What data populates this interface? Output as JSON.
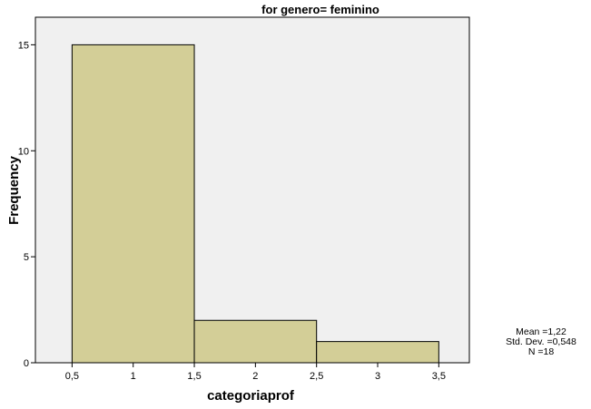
{
  "chart_data": {
    "type": "bar",
    "title": "for genero= feminino",
    "xlabel": "categoriaprof",
    "ylabel": "Frequency",
    "bins": [
      {
        "start": 0.5,
        "end": 1.5,
        "value": 15
      },
      {
        "start": 1.5,
        "end": 2.5,
        "value": 2
      },
      {
        "start": 2.5,
        "end": 3.5,
        "value": 1
      }
    ],
    "xlim": [
      0.2,
      3.75
    ],
    "ylim": [
      0,
      16.3
    ],
    "x_ticks": [
      0.5,
      1,
      1.5,
      2,
      2.5,
      3,
      3.5
    ],
    "x_tick_labels": [
      "0,5",
      "1",
      "1,5",
      "2",
      "2,5",
      "3",
      "3,5"
    ],
    "y_ticks": [
      0,
      5,
      10,
      15
    ],
    "y_tick_labels": [
      "0",
      "5",
      "10",
      "15"
    ],
    "grid": false,
    "colors": {
      "plot_background": "#f0f0f0",
      "bar_fill": "#d3ce97",
      "bar_stroke": "#000000"
    },
    "stats": {
      "mean": "Mean =1,22",
      "std_dev": "Std. Dev. =0,548",
      "n": "N =18"
    }
  }
}
